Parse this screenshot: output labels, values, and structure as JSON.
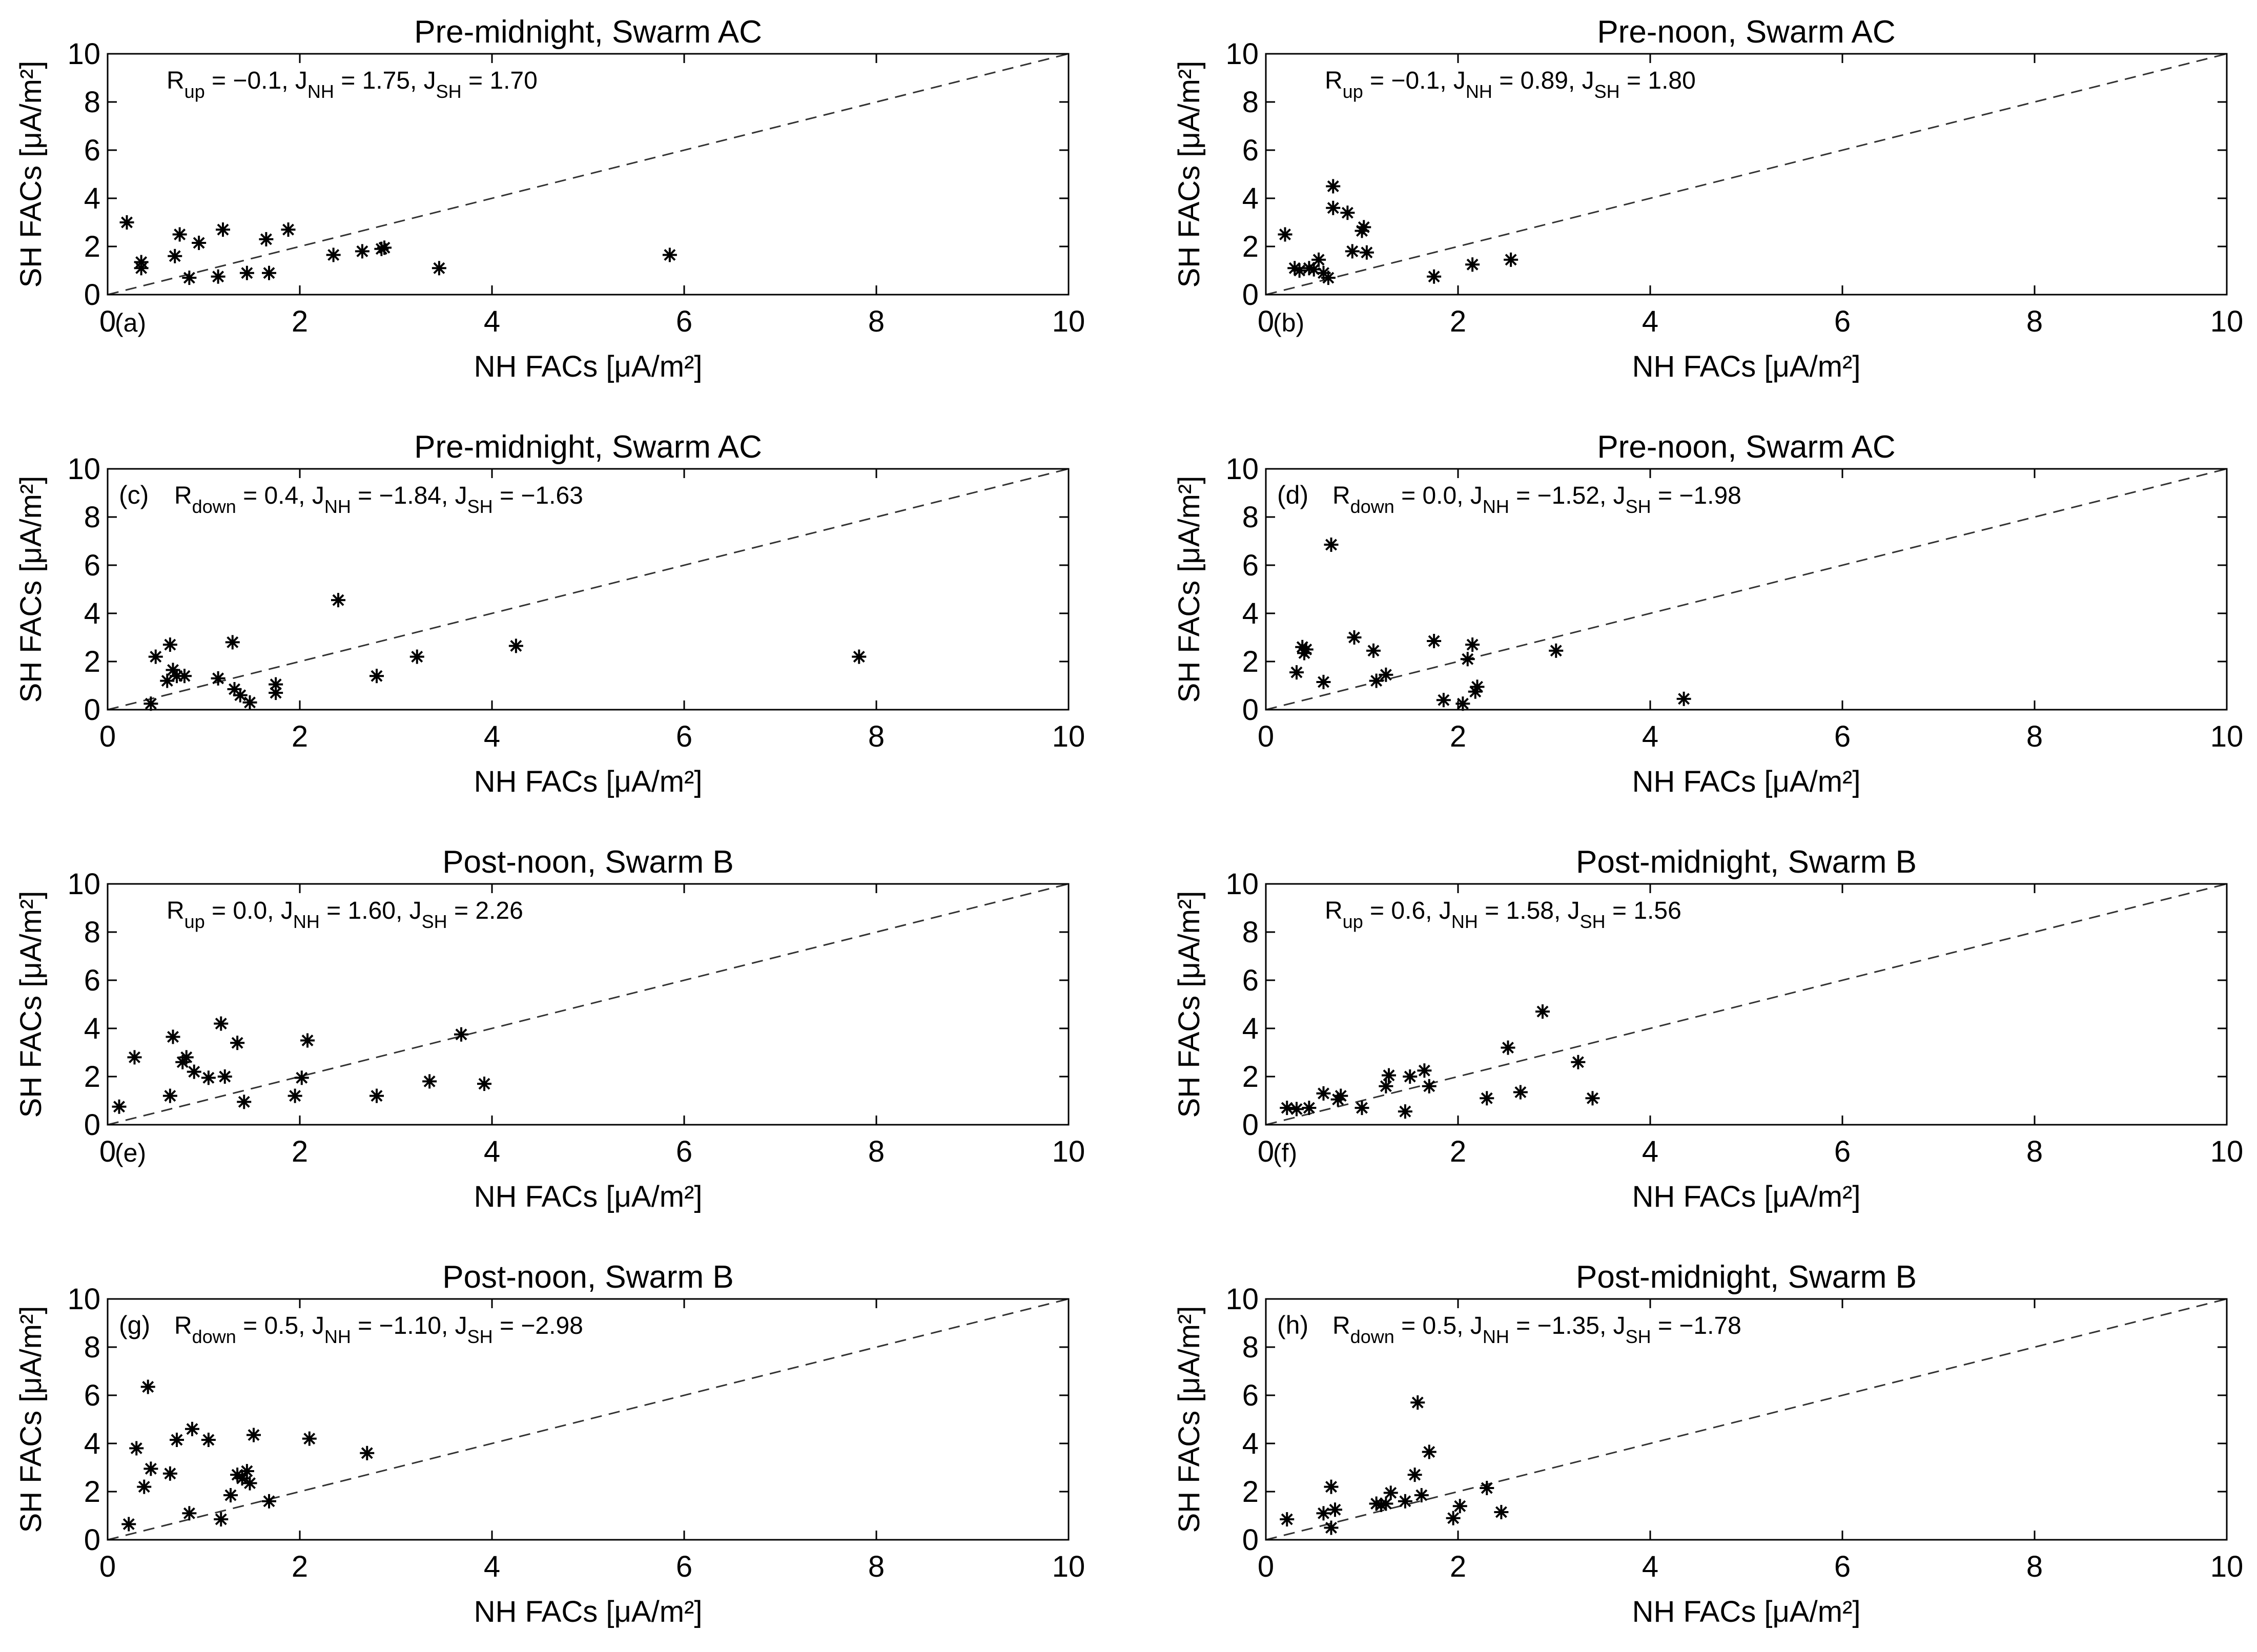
{
  "figure": {
    "xlabel": "NH FACs [μA/m²]",
    "ylabel": "SH FACs [μA/m²]",
    "xlim": [
      0,
      10
    ],
    "ylim": [
      0,
      10
    ],
    "xticks": [
      "0",
      "2",
      "4",
      "6",
      "8",
      "10"
    ],
    "yticks": [
      "0",
      "2",
      "4",
      "6",
      "8",
      "10"
    ],
    "reference_line": "y = x (dashed)"
  },
  "chart_data": [
    {
      "type": "scatter",
      "label": "(a)",
      "title": "Pre-midnight, Swarm AC",
      "stats": {
        "r_symbol": "R",
        "r_sub": "up",
        "r_value": "−0.1",
        "jnh": "1.75",
        "jsh": "1.70"
      },
      "x": [
        0.2,
        0.35,
        0.35,
        0.75,
        0.7,
        0.85,
        0.95,
        1.15,
        1.2,
        1.45,
        1.65,
        1.68,
        1.88,
        2.35,
        2.65,
        2.85,
        2.88,
        3.45,
        5.85
      ],
      "y": [
        3.0,
        1.35,
        1.1,
        2.5,
        1.6,
        0.7,
        2.15,
        0.75,
        2.7,
        0.9,
        2.3,
        0.9,
        2.7,
        1.65,
        1.8,
        1.9,
        1.95,
        1.1,
        1.65
      ]
    },
    {
      "type": "scatter",
      "label": "(b)",
      "title": "Pre-noon, Swarm AC",
      "stats": {
        "r_symbol": "R",
        "r_sub": "up",
        "r_value": "−0.1",
        "jnh": "0.89",
        "jsh": "1.80"
      },
      "x": [
        0.2,
        0.3,
        0.35,
        0.45,
        0.5,
        0.55,
        0.6,
        0.65,
        0.7,
        0.7,
        0.85,
        0.9,
        1.0,
        1.02,
        1.05,
        1.75,
        2.15,
        2.55
      ],
      "y": [
        2.5,
        1.1,
        1.0,
        1.1,
        1.05,
        1.45,
        0.9,
        0.7,
        4.5,
        3.6,
        3.4,
        1.8,
        2.65,
        2.8,
        1.75,
        0.75,
        1.25,
        1.45
      ]
    },
    {
      "type": "scatter",
      "label": "(c)",
      "title": "Pre-midnight, Swarm AC",
      "stats": {
        "r_symbol": "R",
        "r_sub": "down",
        "r_value": "0.4",
        "jnh": "−1.84",
        "jsh": "−1.63"
      },
      "x": [
        0.45,
        0.5,
        0.62,
        0.65,
        0.68,
        0.72,
        0.8,
        1.15,
        1.3,
        1.32,
        1.38,
        1.48,
        1.75,
        1.75,
        2.4,
        2.8,
        3.22,
        4.25,
        7.82
      ],
      "y": [
        0.25,
        2.2,
        1.2,
        2.7,
        1.65,
        1.4,
        1.4,
        1.3,
        2.8,
        0.85,
        0.6,
        0.3,
        0.7,
        1.05,
        4.55,
        1.4,
        2.2,
        2.65,
        2.2
      ]
    },
    {
      "type": "scatter",
      "label": "(d)",
      "title": "Pre-noon, Swarm AC",
      "stats": {
        "r_symbol": "R",
        "r_sub": "down",
        "r_value": "0.0",
        "jnh": "−1.52",
        "jsh": "−1.98"
      },
      "x": [
        0.32,
        0.38,
        0.4,
        0.42,
        0.6,
        0.68,
        0.92,
        1.12,
        1.15,
        1.25,
        1.75,
        1.85,
        2.05,
        2.1,
        2.15,
        2.18,
        2.2,
        3.02,
        4.35
      ],
      "y": [
        1.55,
        2.6,
        2.35,
        2.5,
        1.15,
        6.85,
        3.0,
        2.45,
        1.2,
        1.45,
        2.85,
        0.4,
        0.25,
        2.1,
        2.7,
        0.75,
        0.95,
        2.45,
        0.45
      ]
    },
    {
      "type": "scatter",
      "label": "(e)",
      "title": "Post-noon, Swarm B",
      "stats": {
        "r_symbol": "R",
        "r_sub": "up",
        "r_value": "0.0",
        "jnh": "1.60",
        "jsh": "2.26"
      },
      "x": [
        0.12,
        0.28,
        0.65,
        0.68,
        0.78,
        0.82,
        0.9,
        1.05,
        1.18,
        1.22,
        1.35,
        1.42,
        1.95,
        2.02,
        2.08,
        2.8,
        3.35,
        3.68,
        3.92
      ],
      "y": [
        0.75,
        2.8,
        1.2,
        3.65,
        2.6,
        2.8,
        2.2,
        1.95,
        4.2,
        2.0,
        3.4,
        0.95,
        1.2,
        1.95,
        3.5,
        1.2,
        1.8,
        3.75,
        1.7
      ]
    },
    {
      "type": "scatter",
      "label": "(f)",
      "title": "Post-midnight, Swarm B",
      "stats": {
        "r_symbol": "R",
        "r_sub": "up",
        "r_value": "0.6",
        "jnh": "1.58",
        "jsh": "1.56"
      },
      "x": [
        0.22,
        0.32,
        0.45,
        0.6,
        0.75,
        0.78,
        1.0,
        1.25,
        1.28,
        1.45,
        1.5,
        1.65,
        1.7,
        2.3,
        2.52,
        2.65,
        2.88,
        3.25,
        3.4
      ],
      "y": [
        0.7,
        0.65,
        0.7,
        1.3,
        1.05,
        1.2,
        0.7,
        1.6,
        2.05,
        0.55,
        2.0,
        2.25,
        1.6,
        1.1,
        3.2,
        1.35,
        4.7,
        2.6,
        1.1
      ]
    },
    {
      "type": "scatter",
      "label": "(g)",
      "title": "Post-noon, Swarm B",
      "stats": {
        "r_symbol": "R",
        "r_sub": "down",
        "r_value": "0.5",
        "jnh": "−1.10",
        "jsh": "−2.98"
      },
      "x": [
        0.22,
        0.3,
        0.38,
        0.42,
        0.45,
        0.65,
        0.72,
        0.85,
        0.88,
        1.05,
        1.18,
        1.28,
        1.35,
        1.4,
        1.45,
        1.48,
        1.52,
        1.68,
        2.1,
        2.7
      ],
      "y": [
        0.65,
        3.8,
        2.2,
        6.35,
        2.95,
        2.75,
        4.15,
        1.1,
        4.6,
        4.15,
        0.85,
        1.85,
        2.7,
        2.55,
        2.85,
        2.35,
        4.35,
        1.6,
        4.2,
        3.6
      ]
    },
    {
      "type": "scatter",
      "label": "(h)",
      "title": "Post-midnight, Swarm B",
      "stats": {
        "r_symbol": "R",
        "r_sub": "down",
        "r_value": "0.5",
        "jnh": "−1.35",
        "jsh": "−1.78"
      },
      "x": [
        0.22,
        0.6,
        0.68,
        0.68,
        0.72,
        1.15,
        1.2,
        1.25,
        1.3,
        1.45,
        1.55,
        1.58,
        1.62,
        1.7,
        1.95,
        2.02,
        2.3,
        2.45
      ],
      "y": [
        0.85,
        1.1,
        0.5,
        2.2,
        1.25,
        1.5,
        1.45,
        1.5,
        1.95,
        1.6,
        2.7,
        5.7,
        1.85,
        3.65,
        0.9,
        1.4,
        2.15,
        1.15
      ]
    }
  ]
}
